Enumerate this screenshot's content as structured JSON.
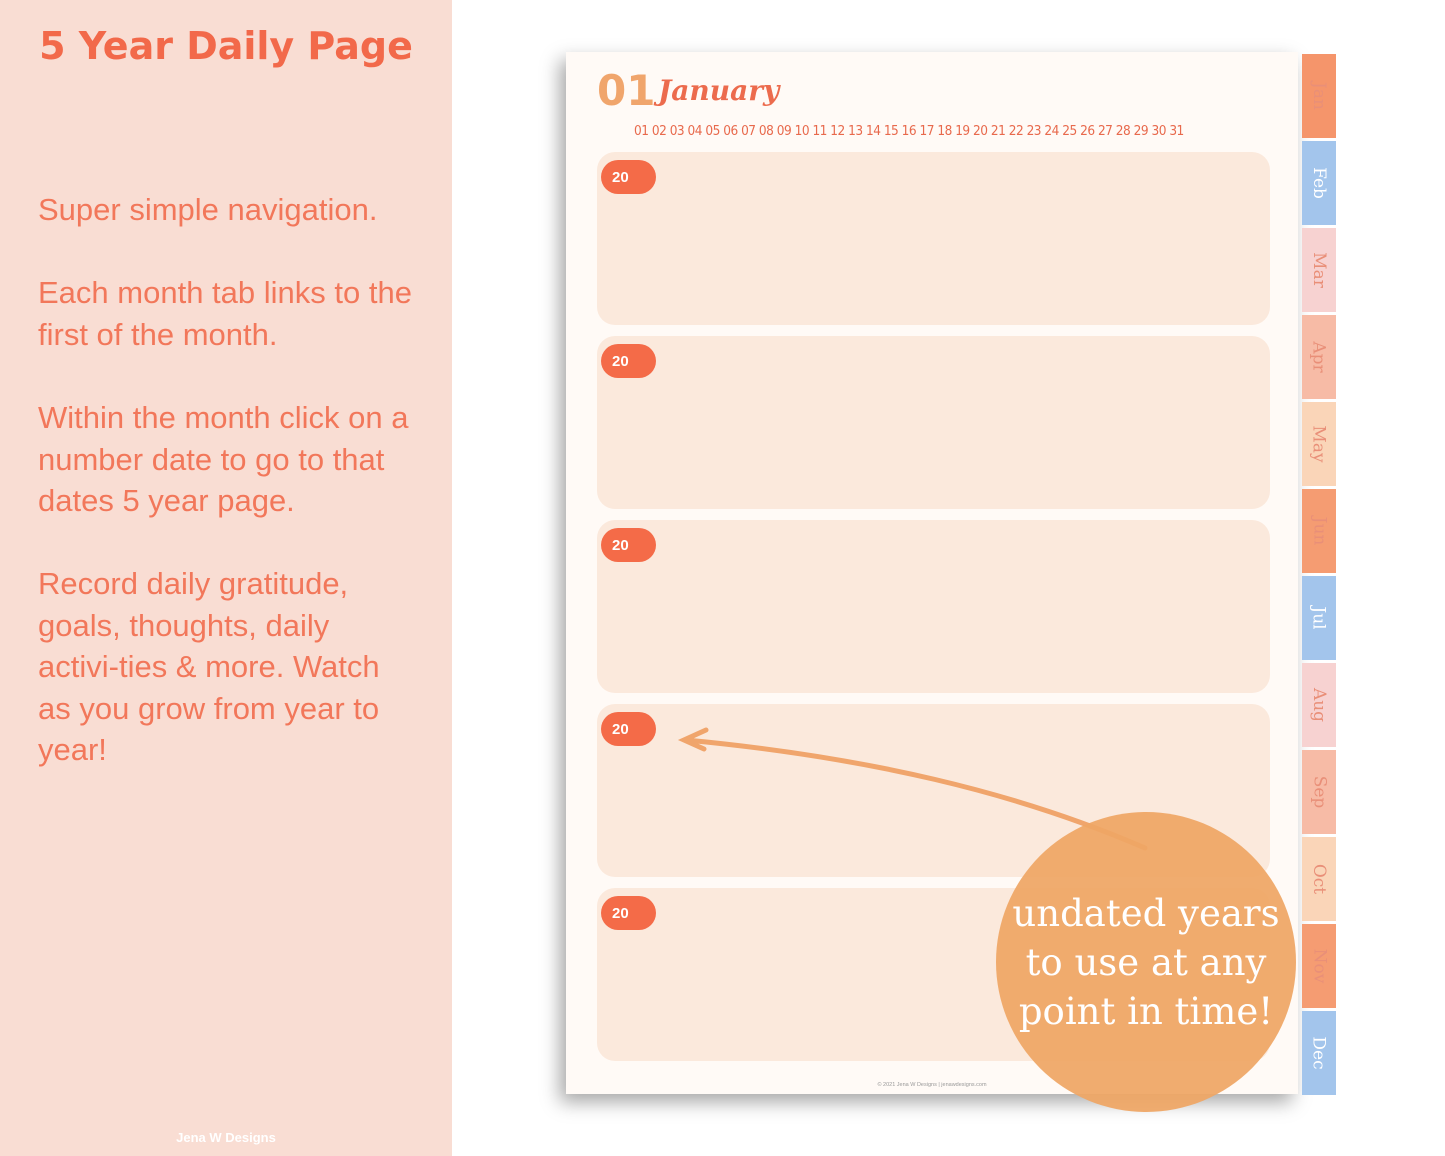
{
  "sidebar": {
    "title": "5 Year Daily Page",
    "paragraphs": [
      "Super simple navigation.",
      "Each month tab links to the first of the month.",
      "Within the month click on a number date to go to that dates 5 year page.",
      "Record daily gratitude, goals, thoughts, daily activi-ties & more. Watch as you grow from year to year!"
    ],
    "brand": "Jena W Designs"
  },
  "planner": {
    "day": "01",
    "month": "January",
    "dates": [
      "01",
      "02",
      "03",
      "04",
      "05",
      "06",
      "07",
      "08",
      "09",
      "10",
      "11",
      "12",
      "13",
      "14",
      "15",
      "16",
      "17",
      "18",
      "19",
      "20",
      "21",
      "22",
      "23",
      "24",
      "25",
      "26",
      "27",
      "28",
      "29",
      "30",
      "31"
    ],
    "years": [
      "20",
      "20",
      "20",
      "20",
      "20"
    ],
    "footer": "© 2021 Jena W Designs | jenawdesigns.com",
    "tabs": [
      {
        "label": "Jan",
        "color": "#f5956b"
      },
      {
        "label": "Feb",
        "color": "#a3c5ec"
      },
      {
        "label": "Mar",
        "color": "#f7d2d1"
      },
      {
        "label": "Apr",
        "color": "#f7bba6"
      },
      {
        "label": "May",
        "color": "#fad5b8"
      },
      {
        "label": "Jun",
        "color": "#f59c72"
      },
      {
        "label": "Jul",
        "color": "#a3c5ec"
      },
      {
        "label": "Aug",
        "color": "#f7d2d1"
      },
      {
        "label": "Sep",
        "color": "#f7bba6"
      },
      {
        "label": "Oct",
        "color": "#fad5b8"
      },
      {
        "label": "Nov",
        "color": "#f59c72"
      },
      {
        "label": "Dec",
        "color": "#a3c5ec"
      }
    ]
  },
  "badge": {
    "text": "undated years to use at any point in time!"
  }
}
